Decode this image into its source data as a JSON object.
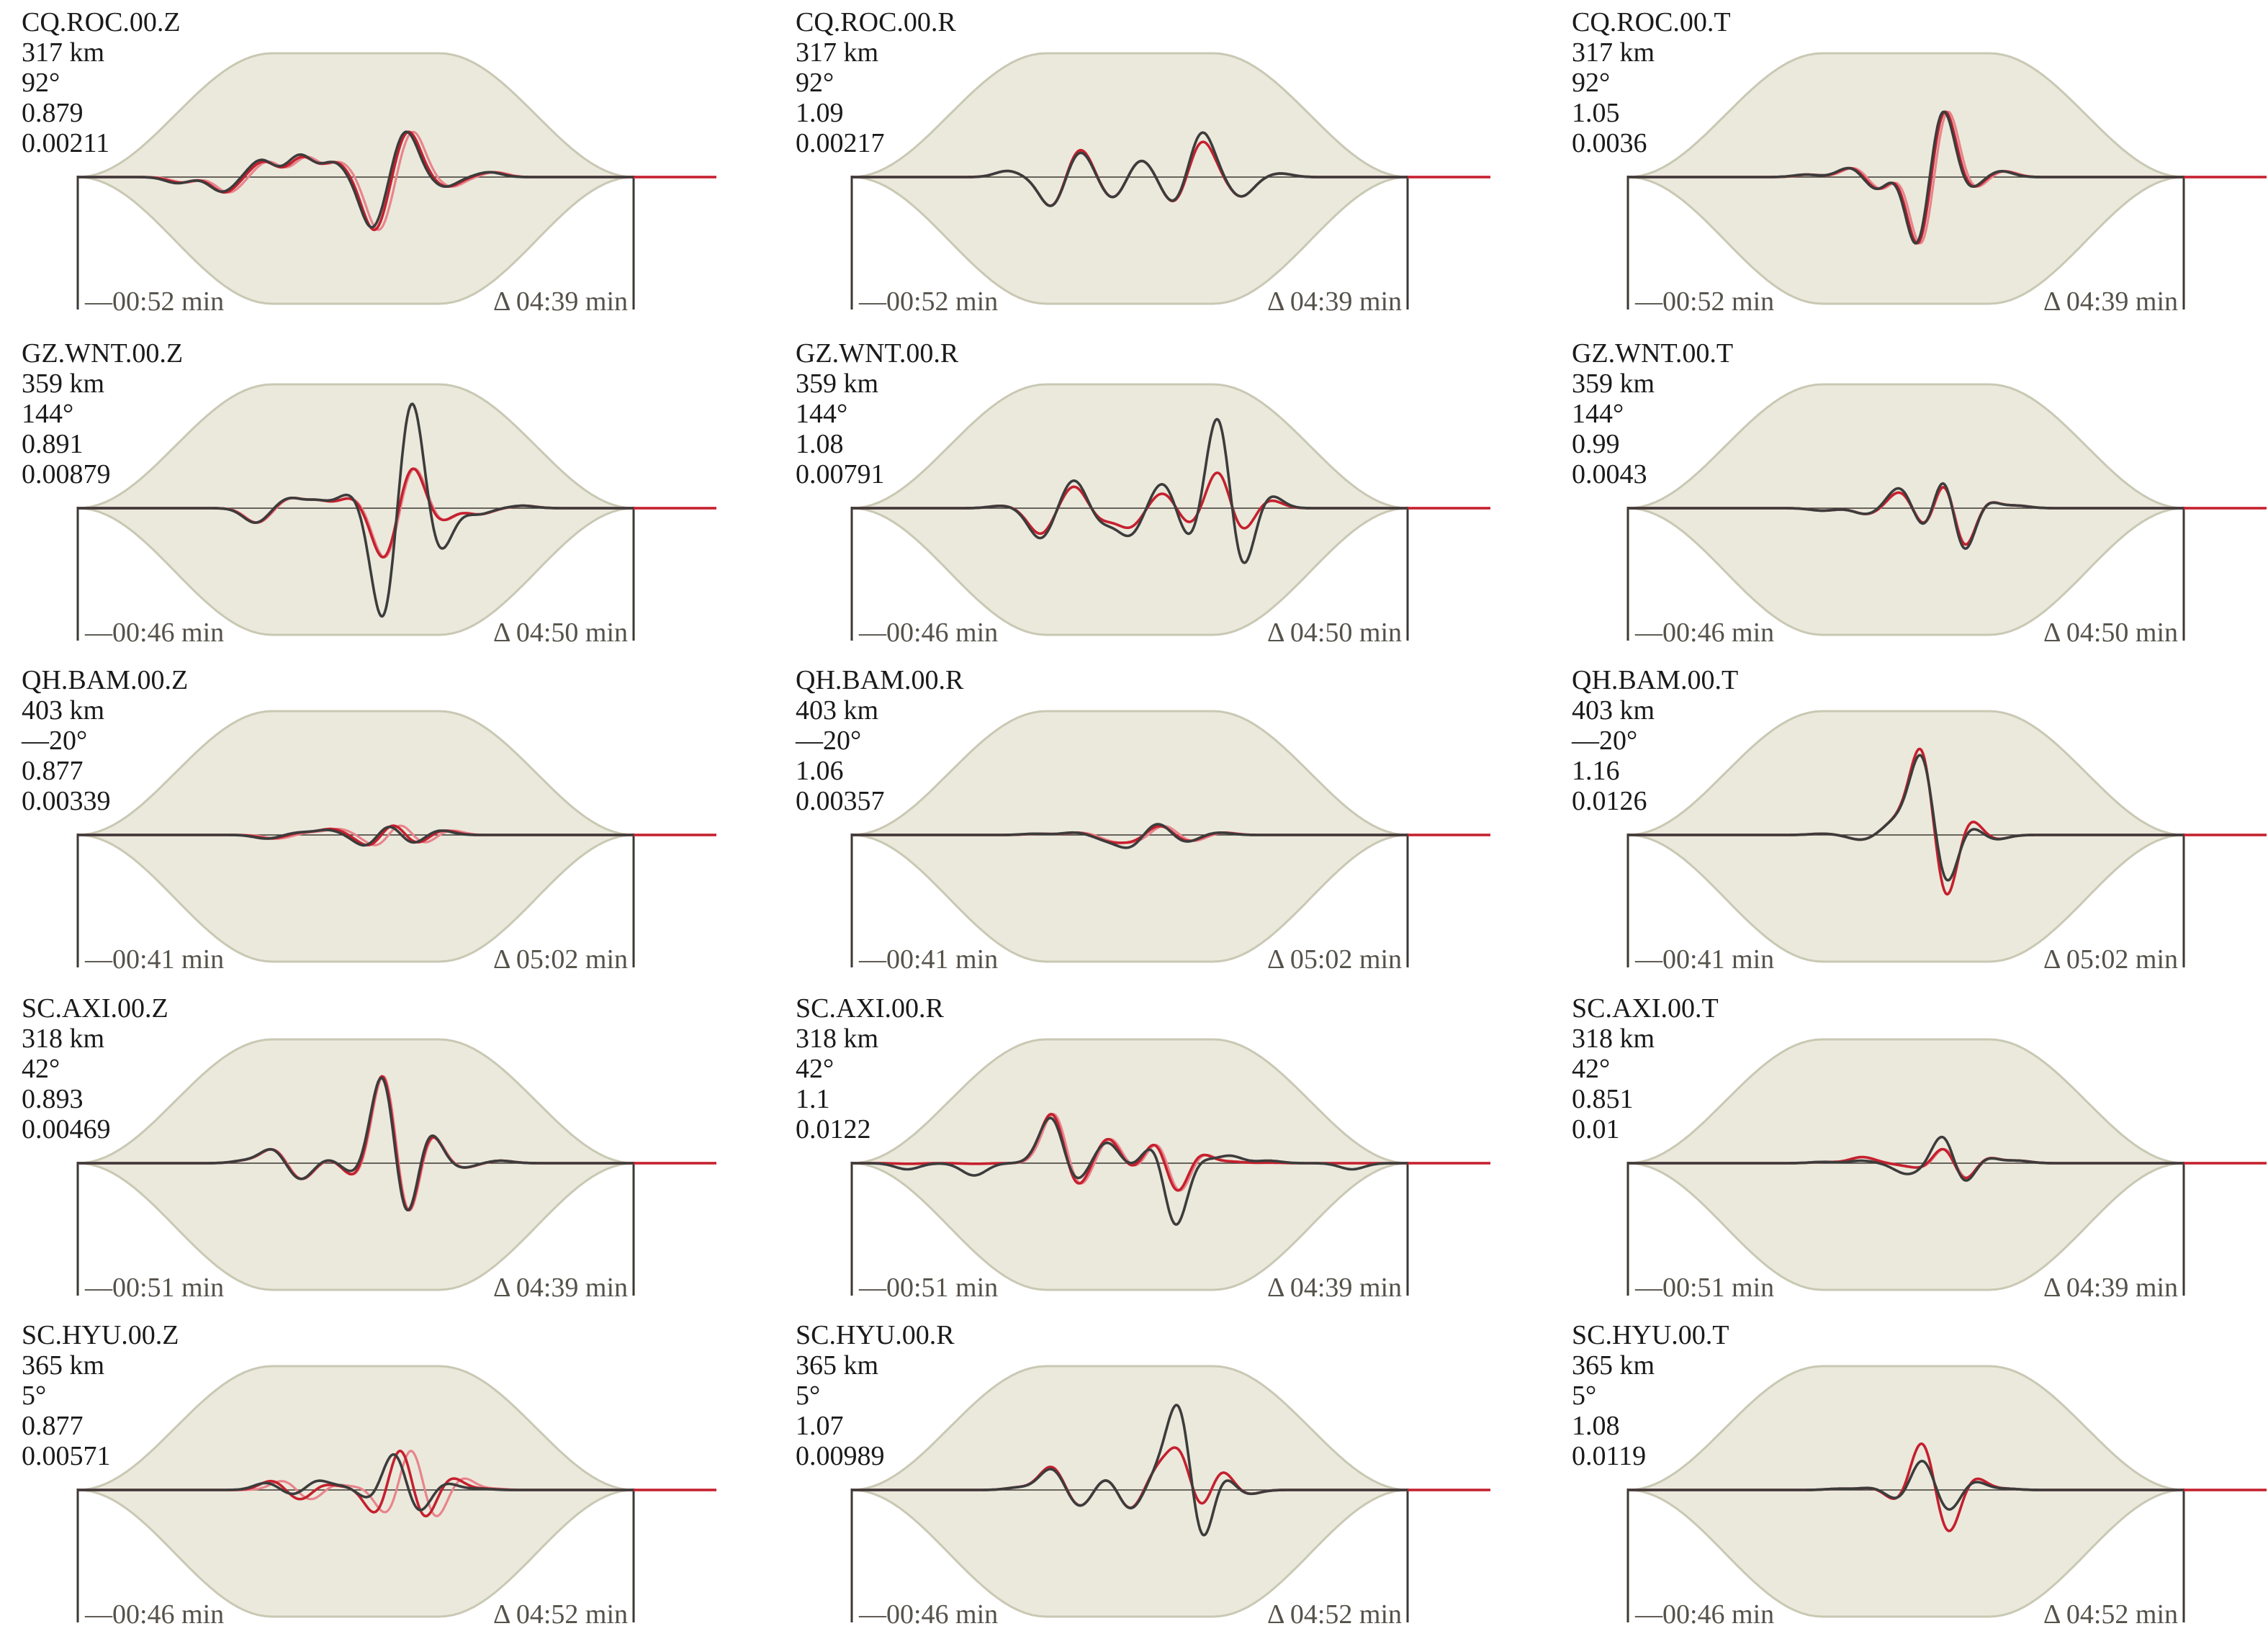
{
  "colors": {
    "envelope_fill": "#ebe9dc",
    "envelope_stroke": "#c9c8b3",
    "axis": "#3c3833",
    "observed": "#3c3c3c",
    "synthetic": "#c5202e",
    "synthetic_light": "#e8848c"
  },
  "panels": [
    {
      "station": "CQ.ROC.00.Z",
      "distance": "317 km",
      "azimuth": "92°",
      "ratio": "0.879",
      "amplitude": "0.00211",
      "start_time": "—00:52 min",
      "window": "Δ 04:39 min",
      "series": [
        {
          "t": 0.18,
          "a": -0.05
        },
        {
          "t": 0.26,
          "a": -0.12
        },
        {
          "t": 0.33,
          "a": 0.14
        },
        {
          "t": 0.4,
          "a": 0.18
        },
        {
          "t": 0.46,
          "a": 0.12
        },
        {
          "t": 0.53,
          "a": -0.42
        },
        {
          "t": 0.59,
          "a": 0.38
        },
        {
          "t": 0.66,
          "a": -0.08
        },
        {
          "t": 0.74,
          "a": 0.04
        }
      ],
      "syn": {
        "shift": 0.012,
        "scale": [
          0.9,
          1.05,
          0.9,
          0.9,
          1,
          1.05,
          1.0,
          1,
          1
        ]
      }
    },
    {
      "station": "CQ.ROC.00.R",
      "distance": "317 km",
      "azimuth": "92°",
      "ratio": "1.09",
      "amplitude": "0.00217",
      "start_time": "—00:52 min",
      "window": "Δ 04:39 min",
      "series": [
        {
          "t": 0.28,
          "a": 0.05
        },
        {
          "t": 0.36,
          "a": -0.25
        },
        {
          "t": 0.41,
          "a": 0.22
        },
        {
          "t": 0.47,
          "a": -0.18
        },
        {
          "t": 0.52,
          "a": 0.15
        },
        {
          "t": 0.58,
          "a": -0.22
        },
        {
          "t": 0.63,
          "a": 0.38
        },
        {
          "t": 0.7,
          "a": -0.16
        },
        {
          "t": 0.77,
          "a": 0.03
        }
      ],
      "syn": {
        "shift": 0.0,
        "scale": [
          1,
          1.0,
          1.1,
          1,
          1,
          1,
          0.8,
          1,
          1
        ]
      }
    },
    {
      "station": "CQ.ROC.00.T",
      "distance": "317 km",
      "azimuth": "92°",
      "ratio": "1.05",
      "amplitude": "0.0036",
      "start_time": "—00:52 min",
      "window": "Δ 04:39 min",
      "series": [
        {
          "t": 0.32,
          "a": 0.02
        },
        {
          "t": 0.4,
          "a": 0.08
        },
        {
          "t": 0.45,
          "a": -0.12
        },
        {
          "t": 0.49,
          "a": 0.12
        },
        {
          "t": 0.52,
          "a": -0.66
        },
        {
          "t": 0.565,
          "a": 0.62
        },
        {
          "t": 0.61,
          "a": -0.12
        },
        {
          "t": 0.67,
          "a": 0.05
        }
      ],
      "syn": {
        "shift": 0.008,
        "scale": [
          1,
          1,
          1,
          1,
          1,
          1,
          1,
          1
        ]
      }
    },
    {
      "station": "GZ.WNT.00.Z",
      "distance": "359 km",
      "azimuth": "144°",
      "ratio": "0.891",
      "amplitude": "0.00879",
      "start_time": "—00:46 min",
      "window": "Δ 04:50 min",
      "series": [
        {
          "t": 0.32,
          "a": -0.12
        },
        {
          "t": 0.38,
          "a": 0.08
        },
        {
          "t": 0.43,
          "a": 0.06
        },
        {
          "t": 0.49,
          "a": 0.12
        },
        {
          "t": 0.55,
          "a": -0.95
        },
        {
          "t": 0.6,
          "a": 0.95
        },
        {
          "t": 0.65,
          "a": -0.38
        },
        {
          "t": 0.72,
          "a": -0.05
        },
        {
          "t": 0.8,
          "a": 0.02
        }
      ],
      "syn": {
        "shift": 0.004,
        "scale": [
          1,
          1,
          1,
          0.7,
          0.45,
          0.38,
          0.3,
          1,
          1
        ]
      }
    },
    {
      "station": "GZ.WNT.00.R",
      "distance": "359 km",
      "azimuth": "144°",
      "ratio": "1.08",
      "amplitude": "0.00791",
      "start_time": "—00:46 min",
      "window": "Δ 04:50 min",
      "series": [
        {
          "t": 0.27,
          "a": 0.02
        },
        {
          "t": 0.34,
          "a": -0.25
        },
        {
          "t": 0.4,
          "a": 0.24
        },
        {
          "t": 0.45,
          "a": -0.12
        },
        {
          "t": 0.5,
          "a": -0.22
        },
        {
          "t": 0.56,
          "a": 0.22
        },
        {
          "t": 0.61,
          "a": -0.28
        },
        {
          "t": 0.66,
          "a": 0.85
        },
        {
          "t": 0.7,
          "a": -0.58
        },
        {
          "t": 0.75,
          "a": 0.12
        }
      ],
      "syn": {
        "shift": 0.0,
        "scale": [
          1,
          0.85,
          0.78,
          0.8,
          0.7,
          0.6,
          0.52,
          0.4,
          0.38,
          0.6
        ]
      }
    },
    {
      "station": "GZ.WNT.00.T",
      "distance": "359 km",
      "azimuth": "144°",
      "ratio": "0.99",
      "amplitude": "0.0043",
      "start_time": "—00:46 min",
      "window": "Δ 04:50 min",
      "series": [
        {
          "t": 0.35,
          "a": -0.02
        },
        {
          "t": 0.43,
          "a": -0.05
        },
        {
          "t": 0.49,
          "a": 0.18
        },
        {
          "t": 0.54,
          "a": -0.28
        },
        {
          "t": 0.57,
          "a": 0.5
        },
        {
          "t": 0.6,
          "a": -0.5
        },
        {
          "t": 0.64,
          "a": 0.08
        },
        {
          "t": 0.7,
          "a": 0.02
        }
      ],
      "syn": {
        "shift": 0.002,
        "scale": [
          1,
          1,
          0.8,
          0.9,
          0.88,
          0.9,
          1,
          1
        ]
      }
    },
    {
      "station": "QH.BAM.00.Z",
      "distance": "403 km",
      "azimuth": "—20°",
      "ratio": "0.877",
      "amplitude": "0.00339",
      "start_time": "—00:41 min",
      "window": "Δ 05:02 min",
      "series": [
        {
          "t": 0.34,
          "a": -0.03
        },
        {
          "t": 0.4,
          "a": 0.02
        },
        {
          "t": 0.45,
          "a": 0.04
        },
        {
          "t": 0.52,
          "a": -0.1
        },
        {
          "t": 0.56,
          "a": 0.1
        },
        {
          "t": 0.6,
          "a": -0.08
        },
        {
          "t": 0.65,
          "a": 0.04
        }
      ],
      "syn": {
        "shift": 0.02,
        "scale": [
          1,
          1,
          1.2,
          1.0,
          1.1,
          1.0,
          1
        ]
      }
    },
    {
      "station": "QH.BAM.00.R",
      "distance": "403 km",
      "azimuth": "—20°",
      "ratio": "1.06",
      "amplitude": "0.00357",
      "start_time": "—00:41 min",
      "window": "Δ 05:02 min",
      "series": [
        {
          "t": 0.33,
          "a": 0.01
        },
        {
          "t": 0.4,
          "a": 0.02
        },
        {
          "t": 0.46,
          "a": -0.04
        },
        {
          "t": 0.5,
          "a": -0.1
        },
        {
          "t": 0.55,
          "a": 0.1
        },
        {
          "t": 0.6,
          "a": -0.06
        },
        {
          "t": 0.66,
          "a": 0.02
        }
      ],
      "syn": {
        "shift": 0.012,
        "scale": [
          1,
          1,
          1.2,
          0.5,
          0.8,
          0.9,
          1
        ]
      }
    },
    {
      "station": "QH.BAM.00.T",
      "distance": "403 km",
      "azimuth": "—20°",
      "ratio": "1.16",
      "amplitude": "0.0126",
      "start_time": "—00:41 min",
      "window": "Δ 05:02 min",
      "series": [
        {
          "t": 0.35,
          "a": 0.01
        },
        {
          "t": 0.42,
          "a": -0.04
        },
        {
          "t": 0.48,
          "a": 0.1
        },
        {
          "t": 0.53,
          "a": 0.72
        },
        {
          "t": 0.57,
          "a": -0.5
        },
        {
          "t": 0.61,
          "a": 0.1
        },
        {
          "t": 0.66,
          "a": -0.04
        }
      ],
      "syn": {
        "shift": 0.0,
        "scale": [
          1,
          1,
          1,
          1.1,
          1.3,
          1.8,
          1
        ]
      }
    },
    {
      "station": "SC.AXI.00.Z",
      "distance": "318 km",
      "azimuth": "42°",
      "ratio": "0.893",
      "amplitude": "0.00469",
      "start_time": "—00:51 min",
      "window": "Δ 04:39 min",
      "series": [
        {
          "t": 0.3,
          "a": 0.02
        },
        {
          "t": 0.35,
          "a": 0.12
        },
        {
          "t": 0.4,
          "a": -0.14
        },
        {
          "t": 0.45,
          "a": 0.04
        },
        {
          "t": 0.5,
          "a": -0.1
        },
        {
          "t": 0.55,
          "a": 0.8
        },
        {
          "t": 0.59,
          "a": -0.58
        },
        {
          "t": 0.63,
          "a": 0.3
        },
        {
          "t": 0.69,
          "a": -0.04
        },
        {
          "t": 0.76,
          "a": 0.02
        }
      ],
      "syn": {
        "shift": 0.003,
        "scale": [
          1,
          1,
          1,
          1,
          1.3,
          1.02,
          1.0,
          0.95,
          1,
          1
        ]
      }
    },
    {
      "station": "SC.AXI.00.R",
      "distance": "318 km",
      "azimuth": "42°",
      "ratio": "1.1",
      "amplitude": "0.0122",
      "start_time": "—00:51 min",
      "window": "Δ 04:39 min",
      "series": [
        {
          "t": 0.1,
          "a": -0.05
        },
        {
          "t": 0.22,
          "a": -0.1
        },
        {
          "t": 0.36,
          "a": 0.4
        },
        {
          "t": 0.4,
          "a": -0.18
        },
        {
          "t": 0.46,
          "a": 0.18
        },
        {
          "t": 0.5,
          "a": -0.05
        },
        {
          "t": 0.55,
          "a": 0.25
        },
        {
          "t": 0.58,
          "a": -0.6
        },
        {
          "t": 0.62,
          "a": 0.05
        },
        {
          "t": 0.68,
          "a": 0.06
        },
        {
          "t": 0.75,
          "a": 0.02
        },
        {
          "t": 0.9,
          "a": -0.05
        }
      ],
      "syn": {
        "shift": 0.006,
        "scale": [
          0.1,
          0.05,
          1.1,
          1.3,
          1.2,
          1.5,
          1.0,
          0.55,
          2.0,
          0.2,
          0.2,
          0.0
        ]
      }
    },
    {
      "station": "SC.AXI.00.T",
      "distance": "318 km",
      "azimuth": "42°",
      "ratio": "0.851",
      "amplitude": "0.01",
      "start_time": "—00:51 min",
      "window": "Δ 04:39 min",
      "series": [
        {
          "t": 0.35,
          "a": 0.01
        },
        {
          "t": 0.42,
          "a": 0.02
        },
        {
          "t": 0.5,
          "a": -0.08
        },
        {
          "t": 0.54,
          "a": -0.05
        },
        {
          "t": 0.57,
          "a": 0.32
        },
        {
          "t": 0.6,
          "a": -0.25
        },
        {
          "t": 0.64,
          "a": 0.06
        },
        {
          "t": 0.7,
          "a": 0.02
        }
      ],
      "syn": {
        "shift": 0.004,
        "scale": [
          1,
          2.5,
          0.2,
          1.2,
          0.65,
          0.8,
          1,
          1
        ]
      }
    },
    {
      "station": "SC.HYU.00.Z",
      "distance": "365 km",
      "azimuth": "5°",
      "ratio": "0.877",
      "amplitude": "0.00571",
      "start_time": "—00:46 min",
      "window": "Δ 04:52 min",
      "series": [
        {
          "t": 0.34,
          "a": 0.06
        },
        {
          "t": 0.39,
          "a": -0.05
        },
        {
          "t": 0.43,
          "a": 0.08
        },
        {
          "t": 0.48,
          "a": 0.03
        },
        {
          "t": 0.53,
          "a": -0.1
        },
        {
          "t": 0.57,
          "a": 0.35
        },
        {
          "t": 0.61,
          "a": -0.22
        },
        {
          "t": 0.66,
          "a": 0.06
        },
        {
          "t": 0.72,
          "a": 0.01
        }
      ],
      "syn": {
        "shift": 0.03,
        "scale": [
          1.3,
          1.8,
          0.6,
          0.8,
          2.4,
          1.2,
          1.3,
          1.8,
          1
        ]
      }
    },
    {
      "station": "SC.HYU.00.R",
      "distance": "365 km",
      "azimuth": "5°",
      "ratio": "1.07",
      "amplitude": "0.00989",
      "start_time": "—00:46 min",
      "window": "Δ 04:52 min",
      "series": [
        {
          "t": 0.3,
          "a": 0.02
        },
        {
          "t": 0.36,
          "a": 0.18
        },
        {
          "t": 0.41,
          "a": -0.15
        },
        {
          "t": 0.46,
          "a": 0.12
        },
        {
          "t": 0.5,
          "a": -0.18
        },
        {
          "t": 0.55,
          "a": 0.12
        },
        {
          "t": 0.59,
          "a": 0.75
        },
        {
          "t": 0.63,
          "a": -0.58
        },
        {
          "t": 0.66,
          "a": 0.2
        },
        {
          "t": 0.71,
          "a": -0.04
        }
      ],
      "syn": {
        "shift": 0.0,
        "scale": [
          1,
          1.1,
          1.0,
          1.0,
          1.0,
          1.3,
          0.45,
          0.45,
          1.1,
          1
        ]
      }
    },
    {
      "station": "SC.HYU.00.T",
      "distance": "365 km",
      "azimuth": "5°",
      "ratio": "1.08",
      "amplitude": "0.0119",
      "start_time": "—00:46 min",
      "window": "Δ 04:52 min",
      "series": [
        {
          "t": 0.38,
          "a": 0.01
        },
        {
          "t": 0.44,
          "a": 0.02
        },
        {
          "t": 0.49,
          "a": -0.1
        },
        {
          "t": 0.53,
          "a": 0.28
        },
        {
          "t": 0.575,
          "a": -0.2
        },
        {
          "t": 0.62,
          "a": 0.08
        },
        {
          "t": 0.68,
          "a": 0.01
        }
      ],
      "syn": {
        "shift": 0.0,
        "scale": [
          1,
          1,
          1.2,
          1.6,
          2.0,
          1.5,
          1
        ]
      }
    }
  ]
}
